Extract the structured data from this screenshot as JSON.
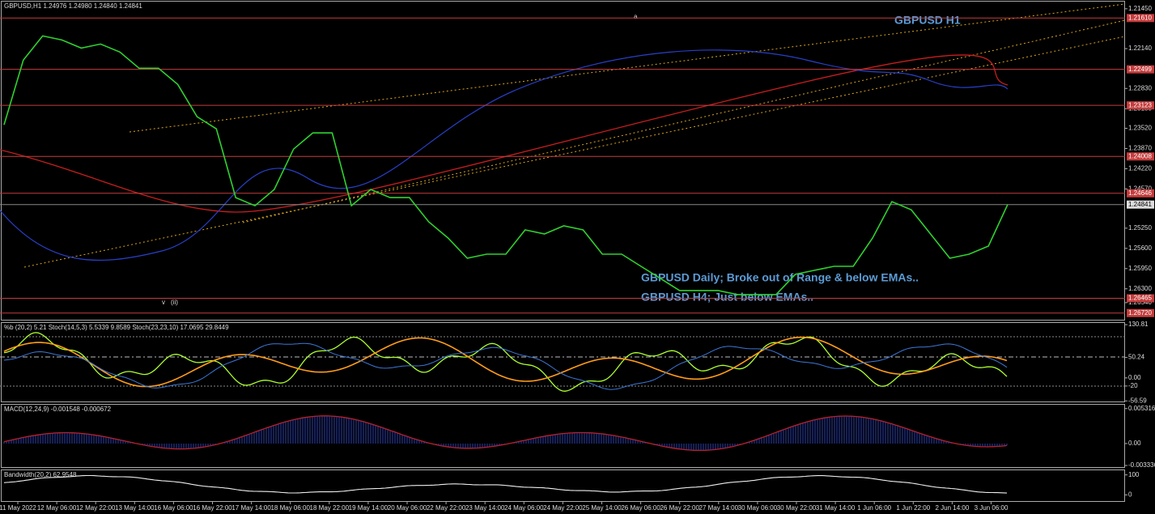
{
  "header": "GBPUSD,H1  1.24976 1.24980 1.24840 1.24841",
  "title": "GBPUSD H1",
  "notes": [
    "GBPUSD Daily; Broke out of Range & below EMAs..",
    "GBPUSD H4; Just below EMAs.."
  ],
  "wave_labels": [
    "a",
    "v",
    "(ii)"
  ],
  "chart_data": {
    "type": "line",
    "color": "#2fd12f",
    "values": [
      1.2346,
      1.2234,
      1.2192,
      1.2199,
      1.2213,
      1.2206,
      1.222,
      1.2248,
      1.2248,
      1.2276,
      1.2332,
      1.2353,
      1.2472,
      1.2486,
      1.2458,
      1.2388,
      1.236,
      1.236,
      1.2486,
      1.2458,
      1.2472,
      1.2472,
      1.2514,
      1.2542,
      1.2577,
      1.257,
      1.257,
      1.2528,
      1.2535,
      1.2521,
      1.2528,
      1.257,
      1.257,
      1.2591,
      1.2612,
      1.2633,
      1.2633,
      1.2633,
      1.264,
      1.264,
      1.264,
      1.2605,
      1.2598,
      1.2591,
      1.2591,
      1.2542,
      1.2479,
      1.2493,
      1.2535,
      1.2577,
      1.257,
      1.2556,
      1.2484
    ],
    "ylim": [
      1.2141,
      1.2685
    ],
    "yticks": [
      {
        "value": 1.2654,
        "label": "1.26540"
      },
      {
        "value": 1.263,
        "label": "1.26300"
      },
      {
        "value": 1.2595,
        "label": "1.25950"
      },
      {
        "value": 1.256,
        "label": "1.25600"
      },
      {
        "value": 1.2525,
        "label": "1.25250"
      },
      {
        "value": 1.2457,
        "label": "1.24570"
      },
      {
        "value": 1.2422,
        "label": "1.24220"
      },
      {
        "value": 1.2387,
        "label": "1.23870"
      },
      {
        "value": 1.2352,
        "label": "1.23520"
      },
      {
        "value": 1.2318,
        "label": "1.23180"
      },
      {
        "value": 1.2283,
        "label": "1.22830"
      },
      {
        "value": 1.2214,
        "label": "1.22140"
      },
      {
        "value": 1.2145,
        "label": "1.21450"
      }
    ],
    "levels": [
      {
        "value": 1.2672,
        "label": "1.26720"
      },
      {
        "value": 1.26465,
        "label": "1.26465"
      },
      {
        "value": 1.24646,
        "label": "1.24646"
      },
      {
        "value": 1.24008,
        "label": "1.24008"
      },
      {
        "value": 1.23123,
        "label": "1.23123"
      },
      {
        "value": 1.22499,
        "label": "1.22499"
      },
      {
        "value": 1.2161,
        "label": "1.21610"
      }
    ],
    "level_color": "#c43c3c",
    "current_price": {
      "value": 1.24841,
      "label": "1.24841"
    },
    "time_labels": [
      "11 May 2022",
      "12 May 06:00",
      "12 May 22:00",
      "13 May 14:00",
      "16 May 06:00",
      "16 May 22:00",
      "17 May 14:00",
      "18 May 06:00",
      "18 May 22:00",
      "19 May 14:00",
      "20 May 06:00",
      "22 May 22:00",
      "23 May 14:00",
      "24 May 06:00",
      "24 May 22:00",
      "25 May 14:00",
      "26 May 06:00",
      "26 May 22:00",
      "27 May 14:00",
      "30 May 06:00",
      "30 May 22:00",
      "31 May 14:00",
      "1 Jun 06:00",
      "1 Jun 22:00",
      "2 Jun 14:00",
      "3 Jun 06:00"
    ]
  },
  "indicators": [
    {
      "header": "%b (20,2) 5.21  Stoch(14,5,3) 5.5339 9.8589  Stoch(23,23,10) 17.0695 29.8449",
      "ylim": [
        -60,
        135
      ],
      "yticks": [
        {
          "value": 130.81,
          "label": "130.81"
        },
        {
          "value": 50.24,
          "label": "50.24"
        },
        {
          "value": 0,
          "label": "0.00"
        },
        -20,
        {
          "value": -56.59,
          "label": "-56.59"
        }
      ]
    },
    {
      "header": "MACD(12,24,9) -0.001548 -0.000672",
      "ylim": [
        -0.0037,
        0.0059
      ],
      "yticks": [
        0.005316,
        {
          "value": 0,
          "label": "0.00"
        },
        -0.003336
      ]
    },
    {
      "header": "Bandwidth(20,2) 62.9548",
      "ylim": [
        -35,
        123
      ],
      "yticks": [
        100,
        0
      ]
    }
  ]
}
